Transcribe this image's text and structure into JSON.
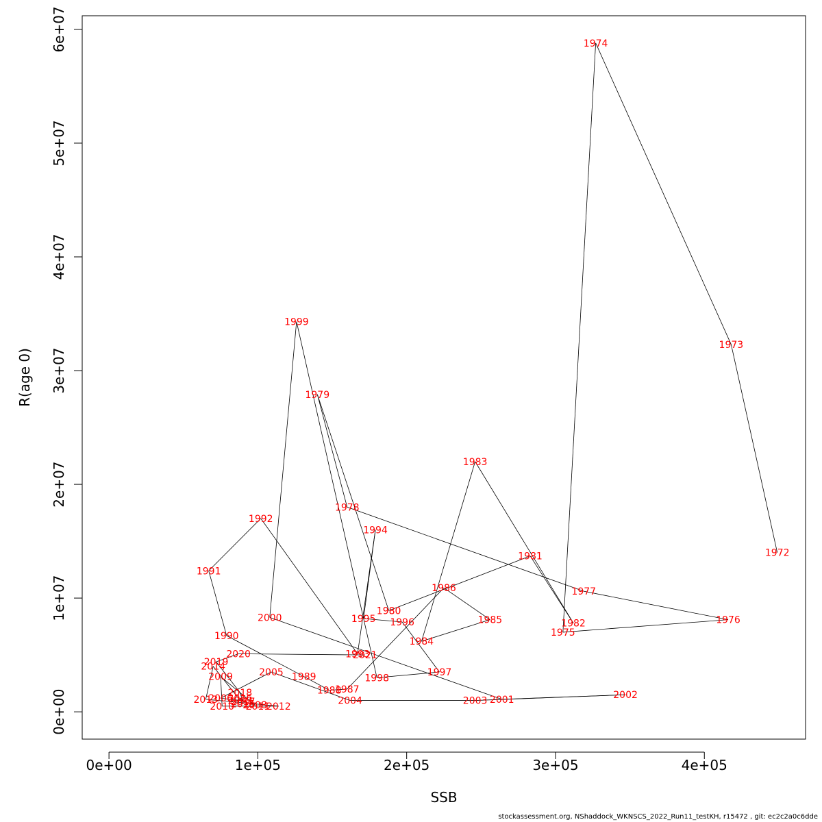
{
  "chart_data": {
    "type": "scatter",
    "xlabel": "SSB",
    "ylabel": "R(age 0)",
    "xlim": [
      -18000,
      468000
    ],
    "ylim": [
      -2400000,
      61200000
    ],
    "x_ticks": [
      0,
      100000,
      200000,
      300000,
      400000
    ],
    "x_tick_labels": [
      "0e+00",
      "1e+05",
      "2e+05",
      "3e+05",
      "4e+05"
    ],
    "y_ticks": [
      0,
      10000000,
      20000000,
      30000000,
      40000000,
      50000000,
      60000000
    ],
    "y_tick_labels": [
      "0e+00",
      "1e+07",
      "2e+07",
      "3e+07",
      "4e+07",
      "5e+07",
      "6e+07"
    ],
    "grid": false,
    "line_color": "#000000",
    "label_color": "#ff0000",
    "series": [
      {
        "points": [
          {
            "label": "1972",
            "x": 449000,
            "y": 14000000
          },
          {
            "label": "1973",
            "x": 418000,
            "y": 32300000
          },
          {
            "label": "1974",
            "x": 327000,
            "y": 58800000
          },
          {
            "label": "1975",
            "x": 305000,
            "y": 7000000
          },
          {
            "label": "1976",
            "x": 416000,
            "y": 8100000
          },
          {
            "label": "1977",
            "x": 319000,
            "y": 10600000
          },
          {
            "label": "1978",
            "x": 160000,
            "y": 18000000
          },
          {
            "label": "1979",
            "x": 140000,
            "y": 27900000
          },
          {
            "label": "1980",
            "x": 188000,
            "y": 8900000
          },
          {
            "label": "1981",
            "x": 283000,
            "y": 13700000
          },
          {
            "label": "1982",
            "x": 312000,
            "y": 7800000
          },
          {
            "label": "1983",
            "x": 246000,
            "y": 22000000
          },
          {
            "label": "1984",
            "x": 210000,
            "y": 6200000
          },
          {
            "label": "1985",
            "x": 256000,
            "y": 8100000
          },
          {
            "label": "1986",
            "x": 225000,
            "y": 10900000
          },
          {
            "label": "1987",
            "x": 160000,
            "y": 2000000
          },
          {
            "label": "1988",
            "x": 148000,
            "y": 1900000
          },
          {
            "label": "1989",
            "x": 131000,
            "y": 3100000
          },
          {
            "label": "1990",
            "x": 79000,
            "y": 6700000
          },
          {
            "label": "1991",
            "x": 67000,
            "y": 12400000
          },
          {
            "label": "1992",
            "x": 102000,
            "y": 17000000
          },
          {
            "label": "1993",
            "x": 167000,
            "y": 5100000
          },
          {
            "label": "1994",
            "x": 179000,
            "y": 16000000
          },
          {
            "label": "1995",
            "x": 171000,
            "y": 8200000
          },
          {
            "label": "1996",
            "x": 197000,
            "y": 7900000
          },
          {
            "label": "1997",
            "x": 222000,
            "y": 3500000
          },
          {
            "label": "1998",
            "x": 180000,
            "y": 3000000
          },
          {
            "label": "1999",
            "x": 126000,
            "y": 34300000
          },
          {
            "label": "2000",
            "x": 108000,
            "y": 8300000
          },
          {
            "label": "2001",
            "x": 264000,
            "y": 1100000
          },
          {
            "label": "2002",
            "x": 347000,
            "y": 1500000
          },
          {
            "label": "2003",
            "x": 246000,
            "y": 1000000
          },
          {
            "label": "2004",
            "x": 162000,
            "y": 1000000
          },
          {
            "label": "2005",
            "x": 109000,
            "y": 3500000
          },
          {
            "label": "2006",
            "x": 75000,
            "y": 1200000
          },
          {
            "label": "2007",
            "x": 88000,
            "y": 1000000
          },
          {
            "label": "2008",
            "x": 98000,
            "y": 600000
          },
          {
            "label": "2009",
            "x": 75000,
            "y": 3100000
          },
          {
            "label": "2010",
            "x": 76000,
            "y": 500000
          },
          {
            "label": "2011",
            "x": 100000,
            "y": 500000
          },
          {
            "label": "2012",
            "x": 114000,
            "y": 500000
          },
          {
            "label": "2013",
            "x": 65000,
            "y": 1100000
          },
          {
            "label": "2014",
            "x": 70000,
            "y": 4000000
          },
          {
            "label": "2015",
            "x": 90000,
            "y": 700000
          },
          {
            "label": "2016",
            "x": 88000,
            "y": 1200000
          },
          {
            "label": "2017",
            "x": 90000,
            "y": 900000
          },
          {
            "label": "2018",
            "x": 88000,
            "y": 1700000
          },
          {
            "label": "2019",
            "x": 72000,
            "y": 4400000
          },
          {
            "label": "2020",
            "x": 87000,
            "y": 5100000
          },
          {
            "label": "2021",
            "x": 172000,
            "y": 5000000
          }
        ]
      }
    ]
  },
  "footer": {
    "credit": "stockassessment.org, NShaddock_WKNSCS_2022_Run11_testKH, r15472 , git: ec2c2a0c6dde"
  }
}
